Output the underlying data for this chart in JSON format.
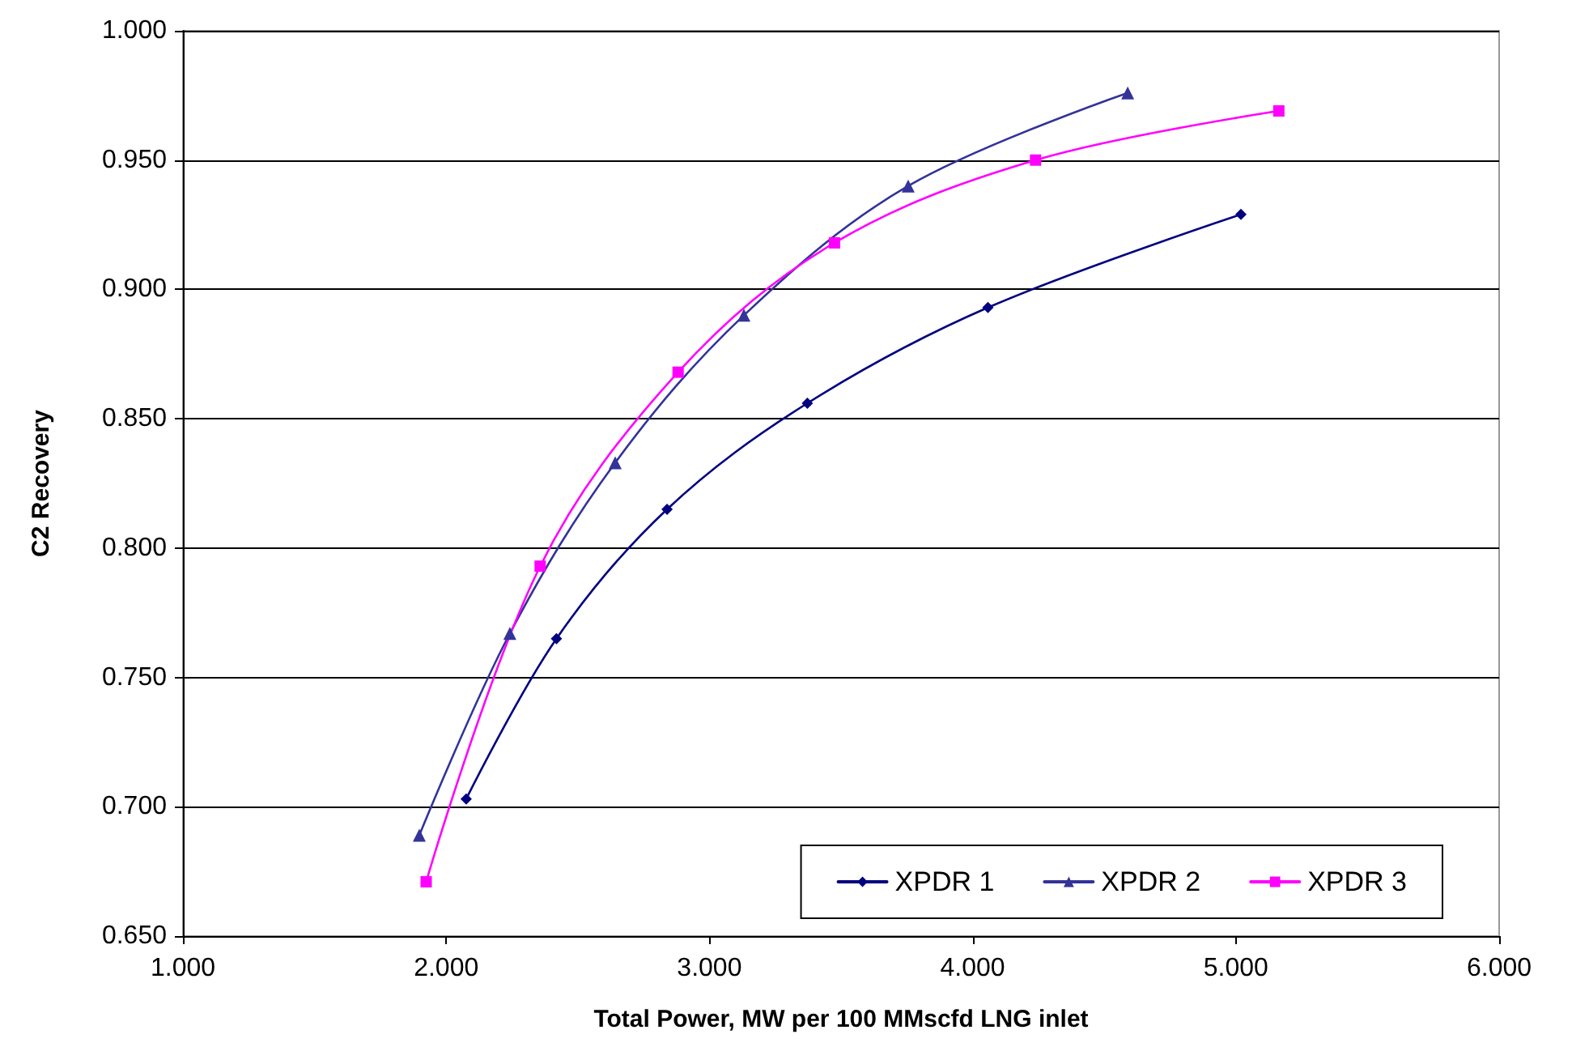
{
  "chart_data": {
    "type": "line",
    "xlabel": "Total Power, MW per 100 MMscfd LNG inlet",
    "ylabel": "C2 Recovery",
    "xlim": [
      1,
      6
    ],
    "xticks": [
      {
        "value": 1,
        "label": "1.000"
      },
      {
        "value": 2,
        "label": "2.000"
      },
      {
        "value": 3,
        "label": "3.000"
      },
      {
        "value": 4,
        "label": "4.000"
      },
      {
        "value": 5,
        "label": "5.000"
      },
      {
        "value": 6,
        "label": "6.000"
      }
    ],
    "ylim": [
      0.65,
      1
    ],
    "yticks": [
      {
        "value": 0.65,
        "label": "0.650"
      },
      {
        "value": 0.7,
        "label": "0.700"
      },
      {
        "value": 0.75,
        "label": "0.750"
      },
      {
        "value": 0.8,
        "label": "0.800"
      },
      {
        "value": 0.85,
        "label": "0.850"
      },
      {
        "value": 0.9,
        "label": "0.900"
      },
      {
        "value": 0.95,
        "label": "0.950"
      },
      {
        "value": 1,
        "label": "1.000"
      }
    ],
    "grid": "y",
    "legend": "bottom right",
    "series": [
      {
        "name": "XPDR 1",
        "color": "#000080",
        "marker": "diamond",
        "x": [
          2.076,
          2.419,
          2.839,
          3.372,
          4.058,
          5.019
        ],
        "values": [
          0.703,
          0.765,
          0.815,
          0.856,
          0.893,
          0.929
        ]
      },
      {
        "name": "XPDR 2",
        "color": "#333399",
        "marker": "triangle",
        "x": [
          1.898,
          2.242,
          2.642,
          3.131,
          3.755,
          4.589
        ],
        "values": [
          0.689,
          0.767,
          0.833,
          0.89,
          0.94,
          0.976
        ]
      },
      {
        "name": "XPDR 3",
        "color": "#ff00ff",
        "marker": "square",
        "x": [
          1.924,
          2.357,
          2.881,
          3.475,
          4.239,
          5.163
        ],
        "values": [
          0.671,
          0.793,
          0.868,
          0.918,
          0.95,
          0.969
        ]
      }
    ]
  }
}
